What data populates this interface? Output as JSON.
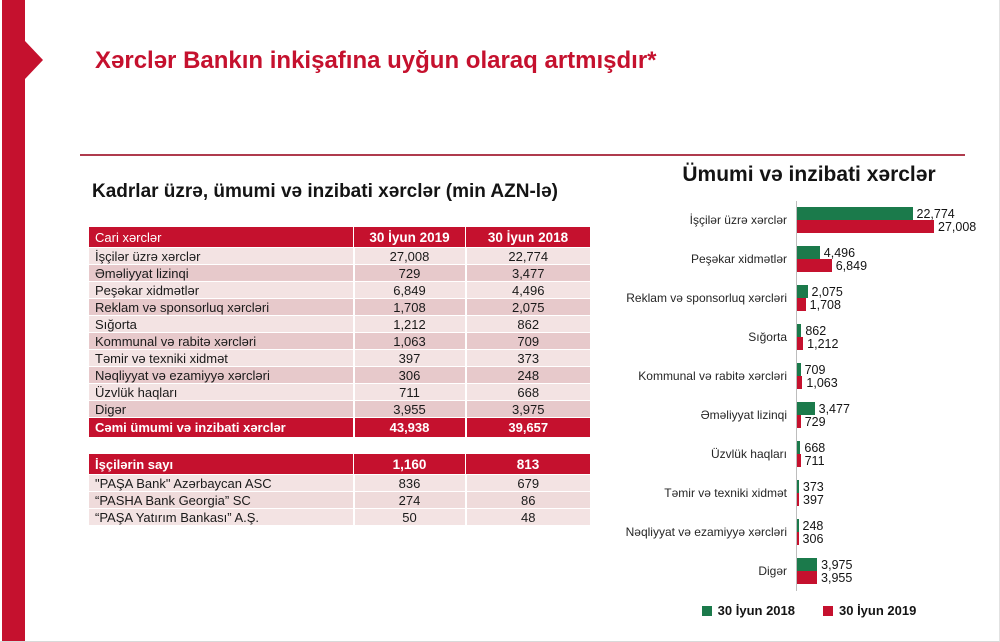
{
  "slide_title": "Xərclər Bankın inkişafına uyğun olaraq artmışdır*",
  "colors": {
    "brand_red": "#C5112E",
    "green_2018": "#1B7A4B",
    "divider_red": "#AF3B4D",
    "row_light": "#F3E3E3",
    "row_dark": "#E7C9CB"
  },
  "left_section": {
    "title": "Kadrlar üzrə, ümumi və inzibati xərclər (min AZN-lə)",
    "expenses_table": {
      "header": [
        "Cari xərclər",
        "30 İyun 2019",
        "30 İyun 2018"
      ],
      "rows": [
        [
          "İşçilər üzrə xərclər",
          "27,008",
          "22,774"
        ],
        [
          "Əməliyyat lizinqi",
          "729",
          "3,477"
        ],
        [
          "Peşəkar xidmətlər",
          "6,849",
          "4,496"
        ],
        [
          "Reklam və sponsorluq xərcləri",
          "1,708",
          "2,075"
        ],
        [
          "Sığorta",
          "1,212",
          "862"
        ],
        [
          "Kommunal və rabitə xərcləri",
          "1,063",
          "709"
        ],
        [
          "Təmir və texniki xidmət",
          "397",
          "373"
        ],
        [
          "Nəqliyyat və ezamiyyə xərcləri",
          "306",
          "248"
        ],
        [
          "Üzvlük haqları",
          "711",
          "668"
        ],
        [
          "Digər",
          "3,955",
          "3,975"
        ]
      ],
      "total": [
        "Cəmi ümumi və inzibati xərclər",
        "43,938",
        "39,657"
      ]
    },
    "staff_table": {
      "header": [
        "İşçilərin sayı",
        "1,160",
        "813"
      ],
      "rows": [
        [
          "\"PAŞA Bank\" Azərbaycan  ASC",
          "836",
          "679"
        ],
        [
          "“PASHA Bank Georgia” SC",
          "274",
          "86"
        ],
        [
          "“PAŞA Yatırım Bankası” A.Ş.",
          "50",
          "48"
        ]
      ]
    }
  },
  "chart_data": {
    "type": "bar",
    "orientation": "horizontal",
    "title": "Ümumi və inzibati xərclər",
    "categories": [
      "İşçilər üzrə xərclər",
      "Peşəkar xidmətlər",
      "Reklam və sponsorluq xərcləri",
      "Sığorta",
      "Kommunal və rabitə xərcləri",
      "Əməliyyat lizinqi",
      "Üzvlük haqları",
      "Təmir və texniki xidmət",
      "Nəqliyyat və ezamiyyə xərcləri",
      "Digər"
    ],
    "series": [
      {
        "name": "30 İyun 2018",
        "color": "#1B7A4B",
        "values": [
          22774,
          4496,
          2075,
          862,
          709,
          3477,
          668,
          373,
          248,
          3975
        ]
      },
      {
        "name": "30 İyun 2019",
        "color": "#C5112E",
        "values": [
          27008,
          6849,
          1708,
          1212,
          1063,
          729,
          711,
          397,
          306,
          3955
        ]
      }
    ],
    "xlim": [
      0,
      27008
    ],
    "value_labels": true,
    "legend_position": "bottom",
    "grid": false
  }
}
